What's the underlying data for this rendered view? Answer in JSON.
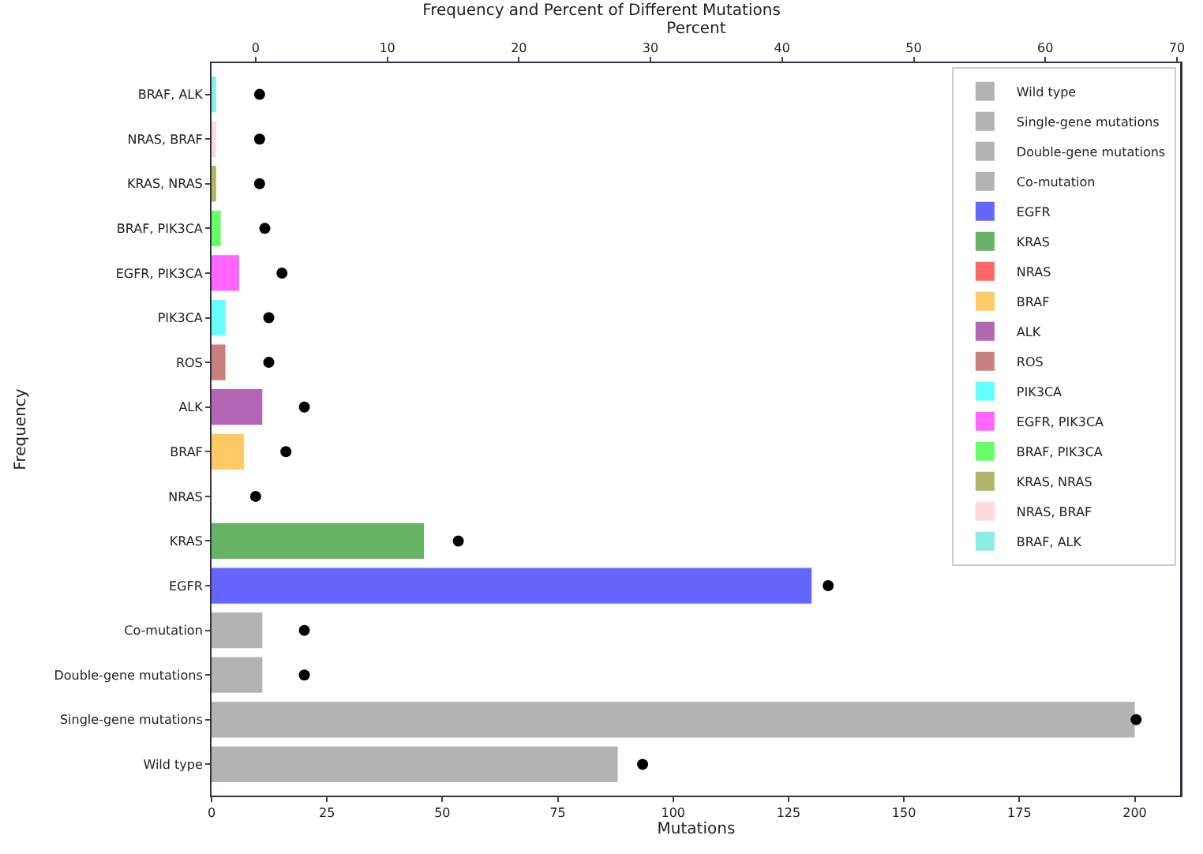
{
  "chart_data": {
    "type": "bar",
    "orientation": "horizontal",
    "title": "Frequency and Percent of Different Mutations",
    "xlabel": "Mutations",
    "ylabel": "Frequency",
    "x2label": "Percent",
    "categories": [
      "BRAF, ALK",
      "NRAS, BRAF",
      "KRAS, NRAS",
      "BRAF, PIK3CA",
      "EGFR, PIK3CA",
      "PIK3CA",
      "ROS",
      "ALK",
      "BRAF",
      "NRAS",
      "KRAS",
      "EGFR",
      "Co-mutation",
      "Double-gene mutations",
      "Single-gene mutations",
      "Wild type"
    ],
    "series": [
      {
        "name": "Wild type",
        "color": "#b3b3b3",
        "values": [
          null,
          null,
          null,
          null,
          null,
          null,
          null,
          null,
          null,
          null,
          null,
          null,
          null,
          null,
          null,
          88
        ]
      },
      {
        "name": "Single-gene mutations",
        "color": "#b3b3b3",
        "values": [
          null,
          null,
          null,
          null,
          null,
          null,
          null,
          null,
          null,
          null,
          null,
          null,
          null,
          null,
          200,
          null
        ]
      },
      {
        "name": "Double-gene mutations",
        "color": "#b3b3b3",
        "values": [
          null,
          null,
          null,
          null,
          null,
          null,
          null,
          null,
          null,
          null,
          null,
          null,
          null,
          11,
          null,
          null
        ]
      },
      {
        "name": "Co-mutation",
        "color": "#b3b3b3",
        "values": [
          null,
          null,
          null,
          null,
          null,
          null,
          null,
          null,
          null,
          null,
          null,
          null,
          11,
          null,
          null,
          null
        ]
      },
      {
        "name": "EGFR",
        "color": "#6666ff",
        "values": [
          null,
          null,
          null,
          null,
          null,
          null,
          null,
          null,
          null,
          null,
          null,
          130,
          null,
          null,
          null,
          null
        ]
      },
      {
        "name": "KRAS",
        "color": "#66b366",
        "values": [
          null,
          null,
          null,
          null,
          null,
          null,
          null,
          null,
          null,
          null,
          46,
          null,
          null,
          null,
          null,
          null
        ]
      },
      {
        "name": "NRAS",
        "color": "#ff6666",
        "values": [
          null,
          null,
          null,
          null,
          null,
          null,
          null,
          null,
          null,
          0,
          null,
          null,
          null,
          null,
          null,
          null
        ]
      },
      {
        "name": "BRAF",
        "color": "#ffc966",
        "values": [
          null,
          null,
          null,
          null,
          null,
          null,
          null,
          null,
          7,
          null,
          null,
          null,
          null,
          null,
          null,
          null
        ]
      },
      {
        "name": "ALK",
        "color": "#b366b3",
        "values": [
          null,
          null,
          null,
          null,
          null,
          null,
          null,
          11,
          null,
          null,
          null,
          null,
          null,
          null,
          null,
          null
        ]
      },
      {
        "name": "ROS",
        "color": "#c97f7f",
        "values": [
          null,
          null,
          null,
          null,
          null,
          null,
          3,
          null,
          null,
          null,
          null,
          null,
          null,
          null,
          null,
          null
        ]
      },
      {
        "name": "PIK3CA",
        "color": "#66ffff",
        "values": [
          null,
          null,
          null,
          null,
          null,
          3,
          null,
          null,
          null,
          null,
          null,
          null,
          null,
          null,
          null,
          null
        ]
      },
      {
        "name": "EGFR, PIK3CA",
        "color": "#ff66ff",
        "values": [
          null,
          null,
          null,
          null,
          6,
          null,
          null,
          null,
          null,
          null,
          null,
          null,
          null,
          null,
          null,
          null
        ]
      },
      {
        "name": "BRAF, PIK3CA",
        "color": "#66ff66",
        "values": [
          null,
          null,
          null,
          2,
          null,
          null,
          null,
          null,
          null,
          null,
          null,
          null,
          null,
          null,
          null,
          null
        ]
      },
      {
        "name": "KRAS, NRAS",
        "color": "#b3b366",
        "values": [
          null,
          null,
          1,
          null,
          null,
          null,
          null,
          null,
          null,
          null,
          null,
          null,
          null,
          null,
          null,
          null
        ]
      },
      {
        "name": "NRAS, BRAF",
        "color": "#ffd9e0",
        "values": [
          null,
          1,
          null,
          null,
          null,
          null,
          null,
          null,
          null,
          null,
          null,
          null,
          null,
          null,
          null,
          null
        ]
      },
      {
        "name": "BRAF, ALK",
        "color": "#8cece3",
        "values": [
          1,
          null,
          null,
          null,
          null,
          null,
          null,
          null,
          null,
          null,
          null,
          null,
          null,
          null,
          null,
          null
        ]
      },
      {
        "type": "scatter",
        "axis": "x2",
        "color": "#000000",
        "values": [
          0.3,
          0.3,
          0.3,
          0.7,
          2.0,
          1.0,
          1.0,
          3.7,
          2.3,
          0,
          15.4,
          43.5,
          3.7,
          3.7,
          66.9,
          29.4
        ]
      }
    ],
    "xlim": [
      0,
      210
    ],
    "xticks": [
      0,
      25,
      50,
      75,
      100,
      125,
      150,
      175,
      200
    ],
    "x2lim": [
      -3.35,
      70.3
    ],
    "x2ticks": [
      0,
      10,
      20,
      30,
      40,
      50,
      60,
      70
    ],
    "legend": "top right",
    "marker": "circle"
  }
}
